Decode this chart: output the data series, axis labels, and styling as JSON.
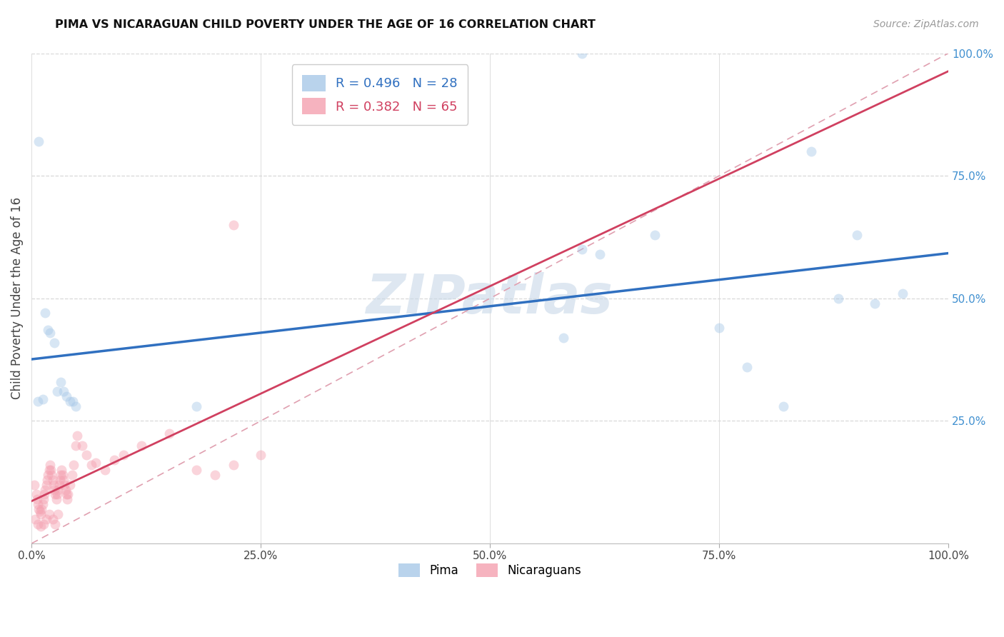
{
  "title": "PIMA VS NICARAGUAN CHILD POVERTY UNDER THE AGE OF 16 CORRELATION CHART",
  "source": "Source: ZipAtlas.com",
  "ylabel": "Child Poverty Under the Age of 16",
  "pima_R": 0.496,
  "pima_N": 28,
  "nicaraguan_R": 0.382,
  "nicaraguan_N": 65,
  "pima_color": "#a8c8e8",
  "nicaraguan_color": "#f4a0b0",
  "pima_line_color": "#3070c0",
  "nicaraguan_line_color": "#d04060",
  "diag_line_color": "#e0a0b0",
  "background_color": "#ffffff",
  "grid_color": "#d8d8d8",
  "right_tick_color": "#4090d0",
  "pima_x": [
    0.008,
    0.015,
    0.018,
    0.02,
    0.025,
    0.028,
    0.032,
    0.035,
    0.038,
    0.042,
    0.045,
    0.048,
    0.6,
    0.62,
    0.68,
    0.75,
    0.78,
    0.82,
    0.88,
    0.9,
    0.92,
    0.95,
    0.58,
    0.18,
    0.007,
    0.012,
    0.6,
    0.85
  ],
  "pima_y": [
    0.82,
    0.47,
    0.435,
    0.43,
    0.41,
    0.31,
    0.33,
    0.31,
    0.3,
    0.29,
    0.29,
    0.28,
    0.6,
    0.59,
    0.63,
    0.44,
    0.36,
    0.28,
    0.5,
    0.63,
    0.49,
    0.51,
    0.42,
    0.28,
    0.29,
    0.295,
    1.0,
    0.8
  ],
  "nicaraguan_x": [
    0.003,
    0.005,
    0.006,
    0.007,
    0.008,
    0.009,
    0.01,
    0.011,
    0.012,
    0.013,
    0.014,
    0.015,
    0.016,
    0.017,
    0.018,
    0.019,
    0.02,
    0.021,
    0.022,
    0.023,
    0.024,
    0.025,
    0.026,
    0.027,
    0.028,
    0.029,
    0.03,
    0.031,
    0.032,
    0.033,
    0.034,
    0.035,
    0.036,
    0.037,
    0.038,
    0.039,
    0.04,
    0.042,
    0.044,
    0.046,
    0.048,
    0.05,
    0.055,
    0.06,
    0.065,
    0.07,
    0.08,
    0.09,
    0.1,
    0.12,
    0.15,
    0.18,
    0.2,
    0.22,
    0.25,
    0.004,
    0.007,
    0.01,
    0.013,
    0.016,
    0.019,
    0.023,
    0.026,
    0.029,
    0.22
  ],
  "nicaraguan_y": [
    0.12,
    0.1,
    0.09,
    0.08,
    0.07,
    0.065,
    0.06,
    0.07,
    0.08,
    0.09,
    0.1,
    0.11,
    0.12,
    0.13,
    0.14,
    0.15,
    0.16,
    0.15,
    0.14,
    0.13,
    0.12,
    0.11,
    0.1,
    0.09,
    0.1,
    0.11,
    0.12,
    0.13,
    0.14,
    0.15,
    0.14,
    0.13,
    0.12,
    0.11,
    0.1,
    0.09,
    0.1,
    0.12,
    0.14,
    0.16,
    0.2,
    0.22,
    0.2,
    0.18,
    0.16,
    0.165,
    0.15,
    0.17,
    0.18,
    0.2,
    0.225,
    0.15,
    0.14,
    0.16,
    0.18,
    0.05,
    0.04,
    0.035,
    0.04,
    0.05,
    0.06,
    0.05,
    0.04,
    0.06,
    0.65
  ],
  "xlim": [
    0.0,
    1.0
  ],
  "ylim": [
    0.0,
    1.0
  ],
  "xtick_vals": [
    0.0,
    0.25,
    0.5,
    0.75,
    1.0
  ],
  "xtick_labels": [
    "0.0%",
    "25.0%",
    "50.0%",
    "75.0%",
    "100.0%"
  ],
  "right_ytick_vals": [
    0.25,
    0.5,
    0.75,
    1.0
  ],
  "right_ytick_labels": [
    "25.0%",
    "50.0%",
    "75.0%",
    "100.0%"
  ],
  "marker_size": 100,
  "marker_alpha": 0.45
}
